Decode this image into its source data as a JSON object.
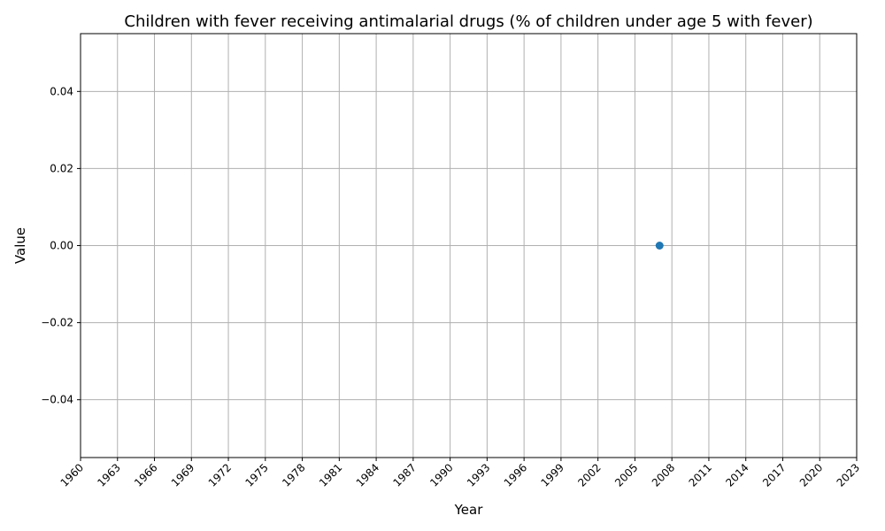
{
  "chart_data": {
    "type": "scatter",
    "title": "Children with fever receiving antimalarial drugs (% of children under age 5 with fever)",
    "xlabel": "Year",
    "ylabel": "Value",
    "xlim": [
      1960,
      2023
    ],
    "ylim": [
      -0.055,
      0.055
    ],
    "x_ticks": [
      1960,
      1963,
      1966,
      1969,
      1972,
      1975,
      1978,
      1981,
      1984,
      1987,
      1990,
      1993,
      1996,
      1999,
      2002,
      2005,
      2008,
      2011,
      2014,
      2017,
      2020,
      2023
    ],
    "y_ticks": [
      -0.04,
      -0.02,
      0.0,
      0.02,
      0.04
    ],
    "y_tick_labels": [
      "−0.04",
      "−0.02",
      "0.00",
      "0.02",
      "0.04"
    ],
    "grid": true,
    "series": [
      {
        "x": [
          2007
        ],
        "y": [
          0.0
        ],
        "color": "#1f77b4"
      }
    ]
  }
}
